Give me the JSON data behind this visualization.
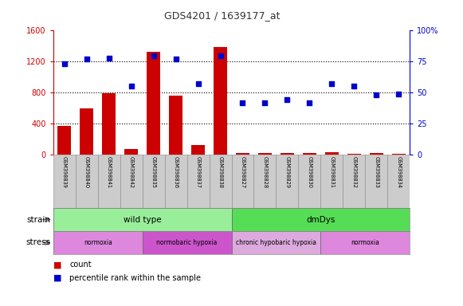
{
  "title": "GDS4201 / 1639177_at",
  "samples": [
    "GSM398839",
    "GSM398840",
    "GSM398841",
    "GSM398842",
    "GSM398835",
    "GSM398836",
    "GSM398837",
    "GSM398838",
    "GSM398827",
    "GSM398828",
    "GSM398829",
    "GSM398830",
    "GSM398831",
    "GSM398832",
    "GSM398833",
    "GSM398834"
  ],
  "counts": [
    370,
    600,
    790,
    75,
    1330,
    760,
    120,
    1390,
    15,
    15,
    15,
    15,
    30,
    10,
    15,
    10
  ],
  "percentile": [
    73,
    77,
    78,
    55,
    80,
    77,
    57,
    80,
    42,
    42,
    44,
    42,
    57,
    55,
    48,
    49
  ],
  "bar_color": "#cc0000",
  "dot_color": "#0000cc",
  "ylim_left": [
    0,
    1600
  ],
  "ylim_right": [
    0,
    100
  ],
  "yticks_left": [
    0,
    400,
    800,
    1200,
    1600
  ],
  "yticks_right": [
    0,
    25,
    50,
    75,
    100
  ],
  "ytick_labels_right": [
    "0",
    "25",
    "50",
    "75",
    "100%"
  ],
  "grid_values": [
    400,
    800,
    1200
  ],
  "strain_groups": [
    {
      "label": "wild type",
      "start": 0,
      "end": 7,
      "color": "#99ee99"
    },
    {
      "label": "dmDys",
      "start": 8,
      "end": 15,
      "color": "#55dd55"
    }
  ],
  "stress_groups": [
    {
      "label": "normoxia",
      "start": 0,
      "end": 3,
      "color": "#dd88dd"
    },
    {
      "label": "normobaric hypoxia",
      "start": 4,
      "end": 7,
      "color": "#cc55cc"
    },
    {
      "label": "chronic hypobaric hypoxia",
      "start": 8,
      "end": 11,
      "color": "#ddaadd"
    },
    {
      "label": "normoxia",
      "start": 12,
      "end": 15,
      "color": "#dd88dd"
    }
  ],
  "legend_items": [
    {
      "label": "count",
      "color": "#cc0000"
    },
    {
      "label": "percentile rank within the sample",
      "color": "#0000cc"
    }
  ],
  "title_color": "#333333",
  "left_axis_color": "#cc0000",
  "right_axis_color": "#0000cc",
  "background_color": "#ffffff",
  "bar_width": 0.6
}
